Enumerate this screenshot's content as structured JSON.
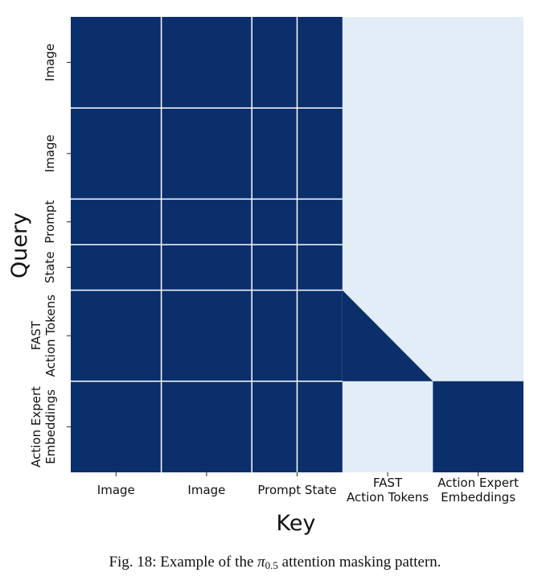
{
  "chart_data": {
    "type": "heatmap",
    "title": "",
    "xlabel": "Key",
    "ylabel": "Query",
    "segments": [
      {
        "name": "Image",
        "label": "Image",
        "size": 2
      },
      {
        "name": "Image",
        "label": "Image",
        "size": 2
      },
      {
        "name": "Prompt",
        "label": "Prompt",
        "size": 1
      },
      {
        "name": "State",
        "label": "State",
        "size": 1
      },
      {
        "name": "FAST Action Tokens",
        "label": "FAST\nAction Tokens",
        "size": 2
      },
      {
        "name": "Action Expert Embeddings",
        "label": "Action Expert\nEmbeddings",
        "size": 2
      }
    ],
    "x_tick_labels": [
      "Image",
      "Image",
      "Prompt State",
      "FAST\nAction Tokens",
      "Action Expert\nEmbeddings"
    ],
    "y_tick_labels": [
      "Image",
      "Image",
      "Prompt",
      "State",
      "FAST\nAction Tokens",
      "Action Expert\nEmbeddings"
    ],
    "mask": [
      [
        "full",
        "full",
        "full",
        "full",
        "none",
        "none"
      ],
      [
        "full",
        "full",
        "full",
        "full",
        "none",
        "none"
      ],
      [
        "full",
        "full",
        "full",
        "full",
        "none",
        "none"
      ],
      [
        "full",
        "full",
        "full",
        "full",
        "none",
        "none"
      ],
      [
        "full",
        "full",
        "full",
        "full",
        "causal",
        "none"
      ],
      [
        "full",
        "full",
        "full",
        "full",
        "none",
        "full"
      ]
    ],
    "colors": {
      "attend": "#0a2f6b",
      "masked": "#e3edf8",
      "gridline": "#ffffff"
    }
  },
  "caption": {
    "prefix": "Fig. 18: Example of the ",
    "symbol": "π",
    "subscript": "0.5",
    "suffix": " attention masking pattern."
  }
}
